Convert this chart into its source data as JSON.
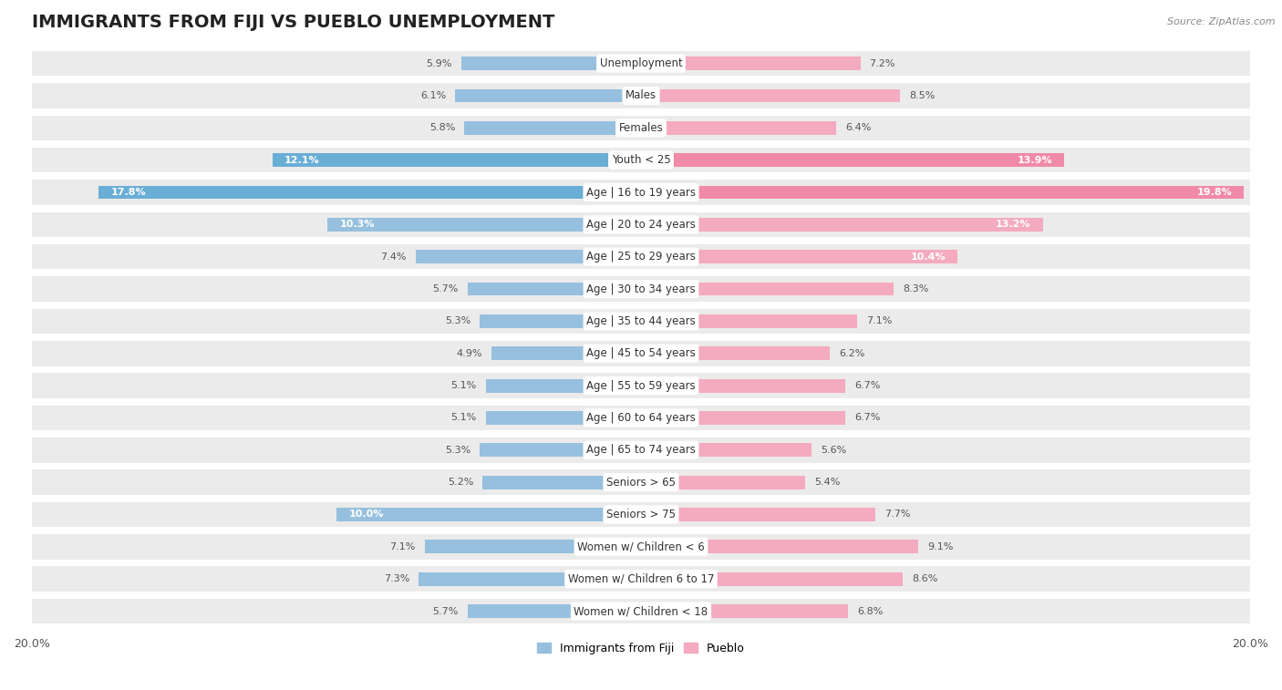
{
  "title": "IMMIGRANTS FROM FIJI VS PUEBLO UNEMPLOYMENT",
  "source": "Source: ZipAtlas.com",
  "categories": [
    "Unemployment",
    "Males",
    "Females",
    "Youth < 25",
    "Age | 16 to 19 years",
    "Age | 20 to 24 years",
    "Age | 25 to 29 years",
    "Age | 30 to 34 years",
    "Age | 35 to 44 years",
    "Age | 45 to 54 years",
    "Age | 55 to 59 years",
    "Age | 60 to 64 years",
    "Age | 65 to 74 years",
    "Seniors > 65",
    "Seniors > 75",
    "Women w/ Children < 6",
    "Women w/ Children 6 to 17",
    "Women w/ Children < 18"
  ],
  "fiji_values": [
    5.9,
    6.1,
    5.8,
    12.1,
    17.8,
    10.3,
    7.4,
    5.7,
    5.3,
    4.9,
    5.1,
    5.1,
    5.3,
    5.2,
    10.0,
    7.1,
    7.3,
    5.7
  ],
  "pueblo_values": [
    7.2,
    8.5,
    6.4,
    13.9,
    19.8,
    13.2,
    10.4,
    8.3,
    7.1,
    6.2,
    6.7,
    6.7,
    5.6,
    5.4,
    7.7,
    9.1,
    8.6,
    6.8
  ],
  "fiji_color": "#96c0de",
  "pueblo_color": "#f4aabf",
  "fiji_highlight_color": "#6aaed6",
  "pueblo_highlight_color": "#f08aa8",
  "fiji_label": "Immigrants from Fiji",
  "pueblo_label": "Pueblo",
  "axis_max": 20.0,
  "background_color": "#ffffff",
  "row_bg_color": "#ebebeb",
  "row_divider_color": "#ffffff",
  "title_fontsize": 14,
  "label_fontsize": 8.5,
  "value_fontsize": 8,
  "highlight_rows": [
    3,
    4
  ]
}
